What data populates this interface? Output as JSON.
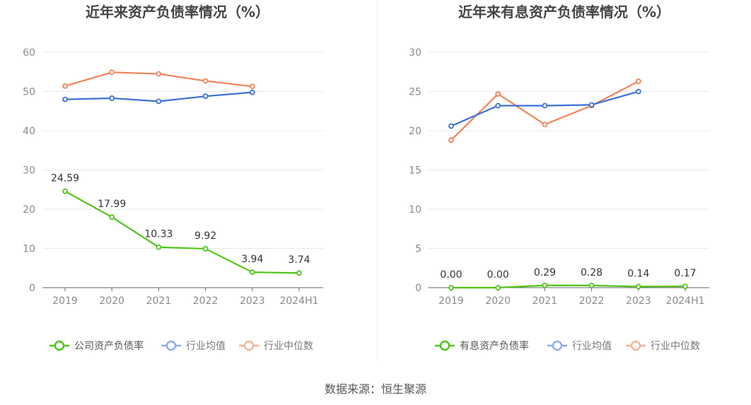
{
  "source": "数据来源：恒生聚源",
  "chart_data": [
    {
      "type": "line",
      "title": "近年来资产负债率情况（%）",
      "categories": [
        "2019",
        "2020",
        "2021",
        "2022",
        "2023",
        "2024H1"
      ],
      "ylim": [
        0,
        60
      ],
      "yticks": [
        0,
        10,
        20,
        30,
        40,
        50,
        60
      ],
      "grid": true,
      "legend_position": "bottom",
      "series": [
        {
          "name": "公司资产负债率",
          "color": "#52c41a",
          "values": [
            24.59,
            17.99,
            10.33,
            9.92,
            3.94,
            3.74
          ],
          "labels": [
            "24.59",
            "17.99",
            "10.33",
            "9.92",
            "3.94",
            "3.74"
          ]
        },
        {
          "name": "行业均值",
          "color": "#3b6fd6",
          "legend_color": "#8fadec",
          "values": [
            48.0,
            48.3,
            47.5,
            48.8,
            49.8,
            null
          ]
        },
        {
          "name": "行业中位数",
          "color": "#f0845a",
          "legend_color": "#f6b49a",
          "values": [
            51.4,
            54.9,
            54.5,
            52.7,
            51.3,
            null
          ]
        }
      ]
    },
    {
      "type": "line",
      "title": "近年来有息资产负债率情况（%）",
      "categories": [
        "2019",
        "2020",
        "2021",
        "2022",
        "2023",
        "2024H1"
      ],
      "ylim": [
        0,
        30
      ],
      "yticks": [
        0,
        5,
        10,
        15,
        20,
        25,
        30
      ],
      "grid": true,
      "legend_position": "bottom",
      "series": [
        {
          "name": "有息资产负债率",
          "color": "#52c41a",
          "values": [
            0.0,
            0.0,
            0.29,
            0.28,
            0.14,
            0.17
          ],
          "labels": [
            "0.00",
            "0.00",
            "0.29",
            "0.28",
            "0.14",
            "0.17"
          ]
        },
        {
          "name": "行业均值",
          "color": "#3b6fd6",
          "legend_color": "#8fadec",
          "values": [
            20.6,
            23.2,
            23.2,
            23.3,
            25.0,
            null
          ]
        },
        {
          "name": "行业中位数",
          "color": "#f0845a",
          "legend_color": "#f6b49a",
          "values": [
            18.8,
            24.7,
            20.8,
            23.2,
            26.3,
            null
          ]
        }
      ]
    }
  ]
}
